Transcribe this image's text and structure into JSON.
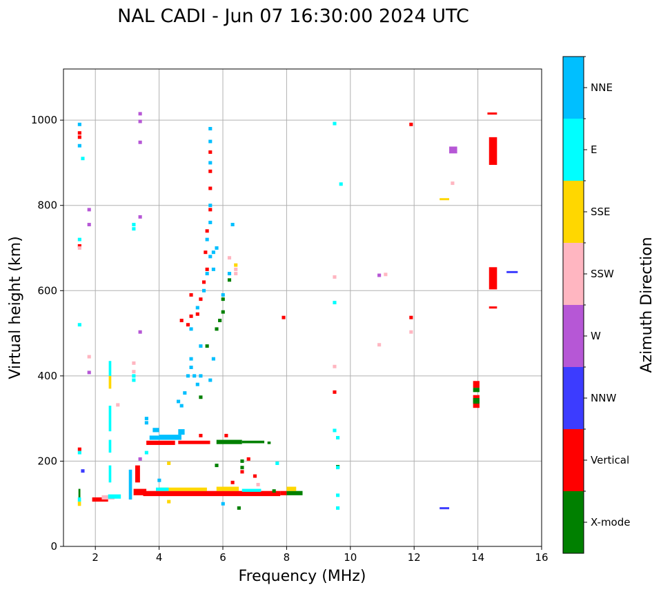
{
  "chart_data": {
    "type": "scatter",
    "title": "NAL CADI - Jun 07 16:30:00 2024 UTC",
    "xlabel": "Frequency (MHz)",
    "ylabel": "Virtual height (km)",
    "xlim": [
      1,
      16
    ],
    "ylim": [
      0,
      1120
    ],
    "xticks": [
      2,
      4,
      6,
      8,
      10,
      12,
      14,
      16
    ],
    "yticks": [
      0,
      200,
      400,
      600,
      800,
      1000
    ],
    "grid": true,
    "colorbar": {
      "label": "Azimuth Direction",
      "categories": [
        "X-mode",
        "Vertical",
        "NNW",
        "W",
        "SSW",
        "SSE",
        "E",
        "NNE"
      ],
      "colors": [
        "#008000",
        "#ff0000",
        "#3c3cff",
        "#b657d6",
        "#ffb6c1",
        "#ffd700",
        "#00ffff",
        "#00bfff"
      ]
    },
    "segments_note": "[f_start, f_end, h_start, h_end, category_index]",
    "segments": [
      [
        3.5,
        7.8,
        118,
        130,
        1
      ],
      [
        7.8,
        8.0,
        120,
        130,
        1
      ],
      [
        8.0,
        8.5,
        120,
        130,
        0
      ],
      [
        8.0,
        8.3,
        130,
        140,
        5
      ],
      [
        4.0,
        5.5,
        130,
        138,
        5
      ],
      [
        3.9,
        4.3,
        130,
        138,
        6
      ],
      [
        5.8,
        6.5,
        130,
        140,
        5
      ],
      [
        6.6,
        7.2,
        128,
        135,
        6
      ],
      [
        3.2,
        3.6,
        120,
        135,
        1
      ],
      [
        1.45,
        1.55,
        95,
        105,
        5
      ],
      [
        1.45,
        1.55,
        105,
        115,
        6
      ],
      [
        1.47,
        1.53,
        115,
        135,
        0
      ],
      [
        1.9,
        2.4,
        105,
        115,
        1
      ],
      [
        2.2,
        2.6,
        110,
        120,
        4
      ],
      [
        2.4,
        2.8,
        112,
        122,
        6
      ],
      [
        3.05,
        3.15,
        110,
        180,
        7
      ],
      [
        3.25,
        3.4,
        150,
        190,
        1
      ],
      [
        2.42,
        2.5,
        150,
        190,
        6
      ],
      [
        2.42,
        2.5,
        220,
        250,
        6
      ],
      [
        2.42,
        2.5,
        270,
        330,
        6
      ],
      [
        2.42,
        2.5,
        370,
        400,
        5
      ],
      [
        2.42,
        2.5,
        400,
        435,
        6
      ],
      [
        3.6,
        4.5,
        238,
        248,
        1
      ],
      [
        4.6,
        5.6,
        240,
        248,
        1
      ],
      [
        5.8,
        6.6,
        240,
        250,
        0
      ],
      [
        6.6,
        7.3,
        242,
        248,
        0
      ],
      [
        7.4,
        7.5,
        240,
        246,
        0
      ],
      [
        3.7,
        4.0,
        250,
        260,
        7
      ],
      [
        4.0,
        4.7,
        250,
        262,
        7
      ],
      [
        3.8,
        4.0,
        268,
        278,
        7
      ],
      [
        4.6,
        4.8,
        262,
        275,
        7
      ],
      [
        13.1,
        13.35,
        922,
        938,
        3
      ],
      [
        14.35,
        14.6,
        895,
        960,
        1
      ],
      [
        14.35,
        14.6,
        603,
        655,
        1
      ],
      [
        14.35,
        14.6,
        558,
        563,
        1
      ],
      [
        14.3,
        14.6,
        1013,
        1018,
        1
      ],
      [
        13.85,
        14.05,
        372,
        388,
        1
      ],
      [
        13.85,
        14.05,
        362,
        372,
        0
      ],
      [
        13.85,
        14.05,
        325,
        355,
        1
      ],
      [
        13.85,
        14.05,
        335,
        348,
        0
      ],
      [
        12.8,
        13.1,
        813,
        817,
        5
      ],
      [
        12.8,
        13.1,
        88,
        92,
        2
      ],
      [
        14.9,
        15.25,
        642,
        646,
        2
      ]
    ],
    "points_note": "[frequency_MHz, height_km, category_index]",
    "points": [
      [
        4.6,
        340,
        7
      ],
      [
        4.7,
        330,
        7
      ],
      [
        4.8,
        360,
        7
      ],
      [
        4.9,
        400,
        7
      ],
      [
        5.0,
        420,
        7
      ],
      [
        5.0,
        440,
        7
      ],
      [
        5.1,
        400,
        7
      ],
      [
        5.2,
        380,
        7
      ],
      [
        5.3,
        400,
        7
      ],
      [
        5.6,
        390,
        7
      ],
      [
        5.7,
        440,
        7
      ],
      [
        5.3,
        470,
        7
      ],
      [
        5.0,
        510,
        7
      ],
      [
        5.2,
        560,
        7
      ],
      [
        5.4,
        600,
        7
      ],
      [
        5.5,
        640,
        7
      ],
      [
        5.6,
        680,
        7
      ],
      [
        5.7,
        690,
        7
      ],
      [
        5.5,
        720,
        7
      ],
      [
        5.6,
        760,
        7
      ],
      [
        5.6,
        800,
        7
      ],
      [
        5.6,
        900,
        7
      ],
      [
        5.6,
        950,
        7
      ],
      [
        5.6,
        980,
        7
      ],
      [
        4.7,
        530,
        1
      ],
      [
        4.9,
        520,
        1
      ],
      [
        5.0,
        540,
        1
      ],
      [
        5.2,
        545,
        1
      ],
      [
        5.3,
        580,
        1
      ],
      [
        5.4,
        620,
        1
      ],
      [
        5.5,
        650,
        1
      ],
      [
        5.45,
        690,
        1
      ],
      [
        5.5,
        740,
        1
      ],
      [
        5.6,
        790,
        1
      ],
      [
        5.6,
        840,
        1
      ],
      [
        5.6,
        880,
        1
      ],
      [
        5.6,
        925,
        1
      ],
      [
        5.0,
        590,
        1
      ],
      [
        5.8,
        510,
        0
      ],
      [
        5.9,
        530,
        0
      ],
      [
        6.0,
        550,
        0
      ],
      [
        6.0,
        580,
        0
      ],
      [
        6.2,
        625,
        0
      ],
      [
        5.5,
        470,
        0
      ],
      [
        5.3,
        350,
        0
      ],
      [
        6.0,
        590,
        7
      ],
      [
        6.2,
        640,
        7
      ],
      [
        6.3,
        755,
        7
      ],
      [
        5.8,
        700,
        7
      ],
      [
        5.7,
        650,
        7
      ],
      [
        6.2,
        677,
        4
      ],
      [
        6.4,
        640,
        4
      ],
      [
        6.4,
        650,
        4
      ],
      [
        6.4,
        660,
        5
      ],
      [
        1.5,
        990,
        7
      ],
      [
        1.5,
        970,
        1
      ],
      [
        1.5,
        960,
        1
      ],
      [
        1.5,
        940,
        7
      ],
      [
        1.6,
        910,
        6
      ],
      [
        1.8,
        790,
        3
      ],
      [
        1.8,
        755,
        3
      ],
      [
        1.5,
        720,
        6
      ],
      [
        1.5,
        705,
        1
      ],
      [
        1.5,
        700,
        4
      ],
      [
        1.5,
        520,
        6
      ],
      [
        1.8,
        445,
        4
      ],
      [
        1.8,
        408,
        3
      ],
      [
        1.5,
        228,
        1
      ],
      [
        1.5,
        220,
        6
      ],
      [
        1.6,
        177,
        2
      ],
      [
        3.4,
        1015,
        3
      ],
      [
        3.4,
        997,
        3
      ],
      [
        3.4,
        948,
        3
      ],
      [
        3.4,
        773,
        3
      ],
      [
        3.2,
        755,
        6
      ],
      [
        3.2,
        745,
        6
      ],
      [
        3.4,
        503,
        3
      ],
      [
        3.2,
        430,
        4
      ],
      [
        3.2,
        410,
        4
      ],
      [
        3.2,
        390,
        6
      ],
      [
        3.2,
        400,
        6
      ],
      [
        2.7,
        332,
        4
      ],
      [
        3.6,
        300,
        7
      ],
      [
        3.6,
        290,
        7
      ],
      [
        3.6,
        220,
        6
      ],
      [
        3.4,
        205,
        3
      ],
      [
        9.5,
        992,
        6
      ],
      [
        9.7,
        850,
        6
      ],
      [
        9.5,
        632,
        4
      ],
      [
        9.5,
        572,
        6
      ],
      [
        9.5,
        422,
        4
      ],
      [
        9.5,
        362,
        1
      ],
      [
        9.5,
        272,
        6
      ],
      [
        9.6,
        255,
        6
      ],
      [
        9.6,
        187,
        0
      ],
      [
        9.6,
        185,
        6
      ],
      [
        9.6,
        120,
        6
      ],
      [
        9.6,
        90,
        6
      ],
      [
        7.9,
        537,
        1
      ],
      [
        7.7,
        195,
        6
      ],
      [
        11.9,
        990,
        1
      ],
      [
        11.9,
        537,
        1
      ],
      [
        11.9,
        503,
        4
      ],
      [
        10.9,
        473,
        4
      ],
      [
        10.9,
        636,
        3
      ],
      [
        11.1,
        638,
        4
      ],
      [
        13.2,
        852,
        4
      ],
      [
        6.6,
        200,
        0
      ],
      [
        6.6,
        185,
        0
      ],
      [
        6.6,
        175,
        1
      ],
      [
        6.0,
        100,
        7
      ],
      [
        6.5,
        90,
        0
      ],
      [
        4.3,
        105,
        5
      ],
      [
        4.0,
        155,
        7
      ],
      [
        4.3,
        195,
        5
      ],
      [
        5.3,
        260,
        1
      ],
      [
        6.1,
        260,
        1
      ],
      [
        6.8,
        205,
        1
      ],
      [
        6.3,
        150,
        1
      ],
      [
        7.0,
        165,
        1
      ],
      [
        7.6,
        130,
        0
      ],
      [
        7.1,
        145,
        4
      ],
      [
        5.8,
        190,
        0
      ]
    ]
  }
}
